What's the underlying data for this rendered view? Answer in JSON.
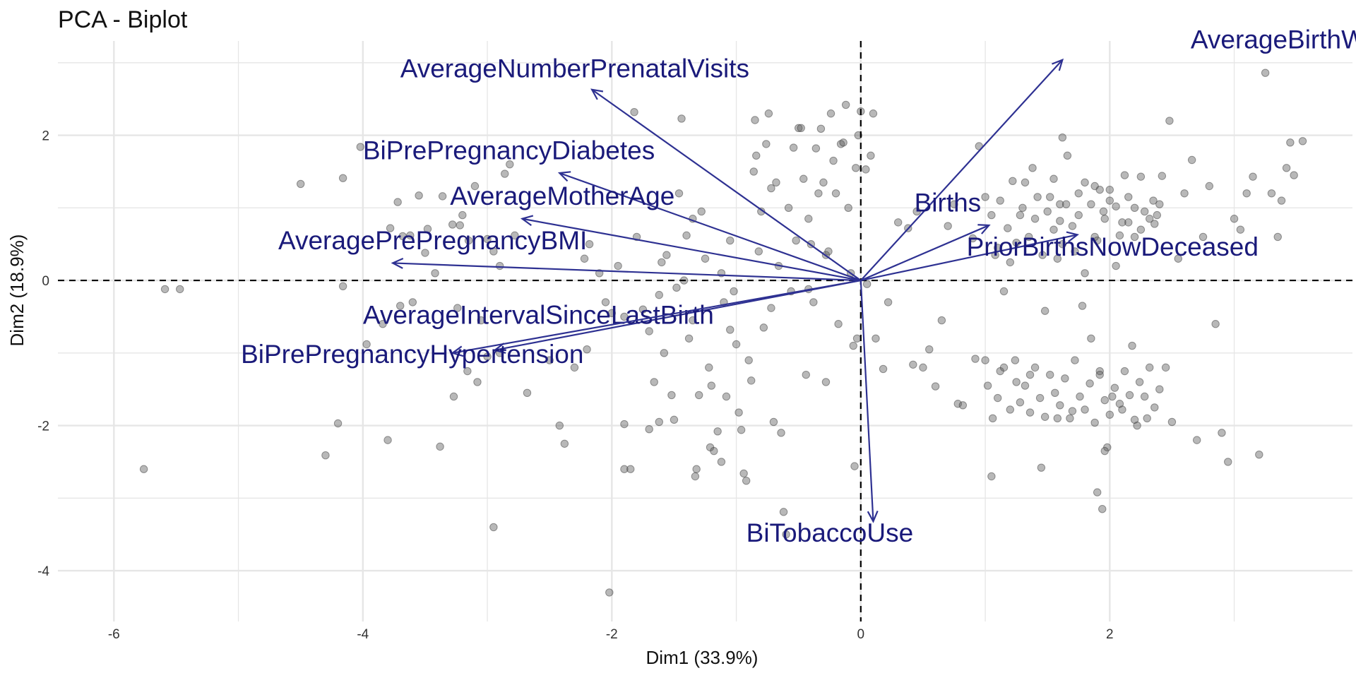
{
  "chart_data": {
    "type": "scatter",
    "title": "PCA - Biplot",
    "xlabel": "Dim1 (33.9%)",
    "ylabel": "Dim2 (18.9%)",
    "xlim": [
      -6.45,
      3.95
    ],
    "ylim": [
      -4.7,
      3.3
    ],
    "x_ticks": [
      -6,
      -4,
      -2,
      0,
      2
    ],
    "y_ticks": [
      -4,
      -2,
      0,
      2
    ],
    "tick_labels_x": [
      "-6",
      "-4",
      "-2",
      "0",
      "2"
    ],
    "tick_labels_y": [
      "-4",
      "-2",
      "0",
      "2"
    ],
    "grid": true,
    "reference_lines": {
      "x": 0,
      "y": 0,
      "style": "dashed"
    },
    "colors": {
      "points": "#555555",
      "arrows": "#2E3192",
      "labels": "#1A1A7A",
      "grid": "#E6E6E6"
    },
    "variables": [
      {
        "label": "AverageBirthWeight",
        "end": [
          1.62,
          3.04
        ],
        "label_pos": [
          2.65,
          3.2
        ]
      },
      {
        "label": "AverageNumberPrenatalVisits",
        "end": [
          -2.16,
          2.63
        ],
        "label_pos": [
          -3.7,
          2.8
        ]
      },
      {
        "label": "BiPrePregnancyDiabetes",
        "end": [
          -2.42,
          1.48
        ],
        "label_pos": [
          -4,
          1.67
        ]
      },
      {
        "label": "AverageMotherAge",
        "end": [
          -2.72,
          0.85
        ],
        "label_pos": [
          -3.3,
          1.04
        ]
      },
      {
        "label": "AveragePrePregnancyBMI",
        "end": [
          -3.76,
          0.24
        ],
        "label_pos": [
          -4.68,
          0.43
        ]
      },
      {
        "label": "Births",
        "end": [
          1.03,
          0.76
        ],
        "label_pos": [
          0.43,
          0.95
        ]
      },
      {
        "label": "PriorBirthsNowDeceased",
        "end": [
          1.74,
          0.63
        ],
        "label_pos": [
          0.85,
          0.34
        ]
      },
      {
        "label": "AverageIntervalSinceLastBirth",
        "end": [
          -2.94,
          -0.96
        ],
        "label_pos": [
          -4.0,
          -0.6
        ]
      },
      {
        "label": "BiPrePregnancyHypertension",
        "end": [
          -3.28,
          -1.0
        ],
        "label_pos": [
          -4.98,
          -1.14
        ]
      },
      {
        "label": "BiTobaccoUse",
        "end": [
          0.1,
          -3.32
        ],
        "label_pos": [
          -0.92,
          -3.6
        ]
      }
    ],
    "points": [
      [
        -5.76,
        -2.6
      ],
      [
        -5.47,
        -0.12
      ],
      [
        -5.59,
        -0.12
      ],
      [
        -4.5,
        1.33
      ],
      [
        -4.16,
        1.41
      ],
      [
        -4.2,
        -1.97
      ],
      [
        -4.3,
        -2.41
      ],
      [
        -4.16,
        -0.08
      ],
      [
        -4.02,
        1.84
      ],
      [
        -3.97,
        -0.88
      ],
      [
        -3.84,
        -0.6
      ],
      [
        -3.8,
        -2.2
      ],
      [
        -3.78,
        0.72
      ],
      [
        -3.72,
        1.08
      ],
      [
        -3.68,
        0.61
      ],
      [
        -3.62,
        0.62
      ],
      [
        -3.6,
        -0.3
      ],
      [
        -3.55,
        1.17
      ],
      [
        -3.5,
        0.38
      ],
      [
        -3.48,
        0.71
      ],
      [
        -3.42,
        0.1
      ],
      [
        -3.36,
        1.16
      ],
      [
        -3.28,
        0.77
      ],
      [
        -3.22,
        0.76
      ],
      [
        -3.2,
        0.9
      ],
      [
        -3.15,
        0.55
      ],
      [
        -3.1,
        1.3
      ],
      [
        -3.05,
        -0.55
      ],
      [
        -3.0,
        0.57
      ],
      [
        -2.95,
        0.4
      ],
      [
        -2.9,
        0.2
      ],
      [
        -2.86,
        1.47
      ],
      [
        -2.82,
        1.6
      ],
      [
        -2.78,
        0.62
      ],
      [
        -3.7,
        -0.35
      ],
      [
        -3.38,
        -2.29
      ],
      [
        -3.27,
        -1.6
      ],
      [
        -3.24,
        -0.38
      ],
      [
        -3.16,
        -1.25
      ],
      [
        -3.08,
        -1.4
      ],
      [
        -3.0,
        -1.05
      ],
      [
        -2.95,
        -3.4
      ],
      [
        -2.9,
        -1.0
      ],
      [
        -2.68,
        -1.55
      ],
      [
        -2.5,
        -1.1
      ],
      [
        -2.42,
        -2.0
      ],
      [
        -2.38,
        -2.25
      ],
      [
        -2.3,
        -1.2
      ],
      [
        -2.22,
        0.3
      ],
      [
        -2.18,
        0.5
      ],
      [
        -2.1,
        0.1
      ],
      [
        -2.05,
        -0.3
      ],
      [
        -2.0,
        -0.45
      ],
      [
        -2.02,
        -4.3
      ],
      [
        -1.95,
        0.2
      ],
      [
        -1.9,
        -2.6
      ],
      [
        -1.9,
        -1.98
      ],
      [
        -1.85,
        -2.6
      ],
      [
        -1.82,
        2.32
      ],
      [
        -1.8,
        0.6
      ],
      [
        -1.75,
        -0.4
      ],
      [
        -1.7,
        -0.7
      ],
      [
        -1.7,
        -2.05
      ],
      [
        -1.66,
        -1.4
      ],
      [
        -1.62,
        -1.95
      ],
      [
        -1.6,
        0.25
      ],
      [
        -1.58,
        -1.0
      ],
      [
        -1.56,
        0.35
      ],
      [
        -1.52,
        -1.58
      ],
      [
        -1.5,
        -1.92
      ],
      [
        -1.48,
        -0.1
      ],
      [
        -1.46,
        1.2
      ],
      [
        -1.44,
        2.23
      ],
      [
        -1.42,
        0.0
      ],
      [
        -1.4,
        0.62
      ],
      [
        -1.38,
        -0.8
      ],
      [
        -1.35,
        -0.55
      ],
      [
        -1.33,
        -2.7
      ],
      [
        -1.32,
        -2.6
      ],
      [
        -1.3,
        -1.58
      ],
      [
        -1.28,
        0.95
      ],
      [
        -1.25,
        0.3
      ],
      [
        -1.22,
        -1.2
      ],
      [
        -1.21,
        -2.3
      ],
      [
        -1.2,
        -1.45
      ],
      [
        -1.18,
        -2.35
      ],
      [
        -1.15,
        -2.08
      ],
      [
        -1.12,
        -2.5
      ],
      [
        -1.12,
        0.1
      ],
      [
        -1.08,
        -1.6
      ],
      [
        -1.05,
        -0.68
      ],
      [
        -1.05,
        0.55
      ],
      [
        -1.02,
        -0.15
      ],
      [
        -1.0,
        -0.88
      ],
      [
        -0.98,
        -1.82
      ],
      [
        -0.96,
        -2.06
      ],
      [
        -0.94,
        -2.66
      ],
      [
        -0.92,
        -2.76
      ],
      [
        -0.9,
        -1.1
      ],
      [
        -0.88,
        -1.38
      ],
      [
        -0.86,
        1.5
      ],
      [
        -0.85,
        2.21
      ],
      [
        -0.84,
        1.72
      ],
      [
        -0.82,
        0.4
      ],
      [
        -0.8,
        0.95
      ],
      [
        -0.78,
        -0.65
      ],
      [
        -0.76,
        1.88
      ],
      [
        -0.74,
        2.3
      ],
      [
        -0.72,
        1.27
      ],
      [
        -0.7,
        -1.95
      ],
      [
        -0.68,
        1.35
      ],
      [
        -0.66,
        0.2
      ],
      [
        -0.64,
        -2.1
      ],
      [
        -0.62,
        -3.19
      ],
      [
        -0.6,
        -3.5
      ],
      [
        -0.58,
        1.0
      ],
      [
        -0.56,
        -0.15
      ],
      [
        -0.54,
        1.83
      ],
      [
        -0.52,
        0.55
      ],
      [
        -0.5,
        2.1
      ],
      [
        -0.48,
        2.1
      ],
      [
        -0.46,
        1.4
      ],
      [
        -0.44,
        -1.3
      ],
      [
        -0.42,
        0.85
      ],
      [
        -0.4,
        0.5
      ],
      [
        -0.38,
        -0.3
      ],
      [
        -0.36,
        1.82
      ],
      [
        -0.34,
        1.2
      ],
      [
        -0.32,
        2.09
      ],
      [
        -0.3,
        1.35
      ],
      [
        -0.28,
        0.35
      ],
      [
        -0.26,
        0.4
      ],
      [
        -0.24,
        2.3
      ],
      [
        -0.22,
        1.65
      ],
      [
        -0.2,
        1.2
      ],
      [
        -0.18,
        -0.6
      ],
      [
        -0.16,
        1.88
      ],
      [
        -0.14,
        1.9
      ],
      [
        -0.12,
        2.42
      ],
      [
        -0.1,
        1.0
      ],
      [
        -0.08,
        0.1
      ],
      [
        -0.06,
        -0.9
      ],
      [
        -0.04,
        1.55
      ],
      [
        -0.02,
        2.0
      ],
      [
        0.0,
        2.33
      ],
      [
        0.04,
        1.53
      ],
      [
        0.05,
        -0.05
      ],
      [
        -0.03,
        -0.8
      ],
      [
        -0.05,
        -2.56
      ],
      [
        0.08,
        1.72
      ],
      [
        0.1,
        2.3
      ],
      [
        0.12,
        -0.8
      ],
      [
        0.18,
        -1.22
      ],
      [
        0.22,
        -0.3
      ],
      [
        0.3,
        0.8
      ],
      [
        0.38,
        0.72
      ],
      [
        0.42,
        -1.16
      ],
      [
        0.45,
        0.95
      ],
      [
        0.5,
        -1.2
      ],
      [
        0.55,
        -0.95
      ],
      [
        0.6,
        -1.46
      ],
      [
        0.65,
        -0.55
      ],
      [
        0.7,
        0.75
      ],
      [
        0.75,
        1.05
      ],
      [
        0.78,
        -1.7
      ],
      [
        0.82,
        -1.72
      ],
      [
        0.9,
        0.58
      ],
      [
        0.95,
        1.85
      ],
      [
        1.0,
        -1.1
      ],
      [
        1.05,
        -2.7
      ],
      [
        1.08,
        0.35
      ],
      [
        1.12,
        -1.25
      ],
      [
        1.15,
        -0.15
      ],
      [
        1.2,
        0.25
      ],
      [
        1.25,
        -1.4
      ],
      [
        1.28,
        0.9
      ],
      [
        1.32,
        1.35
      ],
      [
        1.36,
        -1.3
      ],
      [
        1.4,
        0.85
      ],
      [
        1.45,
        -2.58
      ],
      [
        1.48,
        -0.42
      ],
      [
        1.52,
        1.15
      ],
      [
        1.55,
        0.7
      ],
      [
        1.58,
        -1.9
      ],
      [
        1.6,
        1.05
      ],
      [
        1.62,
        0.5
      ],
      [
        1.66,
        1.72
      ],
      [
        1.7,
        -1.8
      ],
      [
        1.72,
        0.4
      ],
      [
        1.75,
        1.2
      ],
      [
        1.78,
        -0.35
      ],
      [
        1.8,
        0.1
      ],
      [
        1.85,
        -0.8
      ],
      [
        1.88,
        1.3
      ],
      [
        1.9,
        0.55
      ],
      [
        1.92,
        -1.25
      ],
      [
        1.95,
        0.95
      ],
      [
        1.98,
        -2.3
      ],
      [
        2.0,
        1.1
      ],
      [
        2.02,
        -1.6
      ],
      [
        2.05,
        0.2
      ],
      [
        2.08,
        0.62
      ],
      [
        2.1,
        -1.78
      ],
      [
        2.12,
        1.45
      ],
      [
        2.15,
        0.8
      ],
      [
        2.18,
        -0.9
      ],
      [
        2.2,
        1.0
      ],
      [
        2.22,
        -2.0
      ],
      [
        2.25,
        0.7
      ],
      [
        2.28,
        0.95
      ],
      [
        2.3,
        -1.9
      ],
      [
        2.35,
        1.1
      ],
      [
        2.38,
        0.9
      ],
      [
        2.42,
        1.44
      ],
      [
        2.45,
        -1.2
      ],
      [
        2.5,
        -1.95
      ],
      [
        2.55,
        0.3
      ],
      [
        2.6,
        1.2
      ],
      [
        2.66,
        1.66
      ],
      [
        2.7,
        -2.2
      ],
      [
        2.75,
        0.6
      ],
      [
        2.8,
        1.3
      ],
      [
        2.85,
        -0.6
      ],
      [
        2.9,
        -2.1
      ],
      [
        2.95,
        -2.5
      ],
      [
        3.0,
        0.85
      ],
      [
        3.05,
        0.7
      ],
      [
        3.1,
        1.2
      ],
      [
        3.15,
        1.43
      ],
      [
        3.2,
        -2.4
      ],
      [
        3.25,
        2.86
      ],
      [
        3.3,
        1.2
      ],
      [
        3.35,
        0.6
      ],
      [
        3.38,
        1.1
      ],
      [
        3.42,
        1.55
      ],
      [
        3.45,
        1.9
      ],
      [
        3.48,
        1.45
      ],
      [
        3.55,
        1.92
      ],
      [
        2.48,
        2.2
      ],
      [
        1.62,
        1.97
      ],
      [
        1.0,
        1.15
      ],
      [
        1.05,
        0.9
      ],
      [
        1.1,
        0.45
      ],
      [
        1.12,
        1.1
      ],
      [
        1.18,
        0.72
      ],
      [
        1.22,
        1.37
      ],
      [
        1.25,
        0.52
      ],
      [
        1.3,
        1.0
      ],
      [
        1.35,
        0.6
      ],
      [
        1.38,
        1.55
      ],
      [
        1.42,
        1.15
      ],
      [
        1.46,
        0.35
      ],
      [
        1.5,
        0.95
      ],
      [
        1.55,
        1.4
      ],
      [
        1.58,
        0.3
      ],
      [
        1.6,
        0.82
      ],
      [
        1.65,
        1.05
      ],
      [
        1.7,
        0.75
      ],
      [
        1.75,
        0.9
      ],
      [
        1.8,
        1.35
      ],
      [
        1.85,
        1.05
      ],
      [
        1.88,
        0.6
      ],
      [
        1.92,
        1.25
      ],
      [
        1.96,
        0.85
      ],
      [
        2.0,
        1.25
      ],
      [
        2.05,
        1.02
      ],
      [
        2.1,
        0.8
      ],
      [
        2.15,
        1.15
      ],
      [
        2.2,
        0.6
      ],
      [
        2.25,
        1.43
      ],
      [
        2.32,
        0.85
      ],
      [
        2.36,
        0.78
      ],
      [
        2.4,
        1.05
      ],
      [
        1.02,
        -1.45
      ],
      [
        1.06,
        -1.9
      ],
      [
        1.1,
        -1.62
      ],
      [
        1.15,
        -1.2
      ],
      [
        1.2,
        -1.78
      ],
      [
        1.24,
        -1.1
      ],
      [
        1.28,
        -1.68
      ],
      [
        1.32,
        -1.45
      ],
      [
        1.36,
        -1.82
      ],
      [
        1.4,
        -1.2
      ],
      [
        1.44,
        -1.62
      ],
      [
        1.48,
        -1.88
      ],
      [
        1.52,
        -1.3
      ],
      [
        1.56,
        -1.55
      ],
      [
        1.6,
        -1.72
      ],
      [
        1.64,
        -1.35
      ],
      [
        1.68,
        -1.9
      ],
      [
        1.72,
        -1.1
      ],
      [
        1.76,
        -1.6
      ],
      [
        1.8,
        -1.78
      ],
      [
        1.84,
        -1.42
      ],
      [
        1.88,
        -1.96
      ],
      [
        1.92,
        -1.3
      ],
      [
        1.96,
        -1.65
      ],
      [
        2.0,
        -1.85
      ],
      [
        2.04,
        -1.48
      ],
      [
        2.08,
        -1.7
      ],
      [
        2.12,
        -1.25
      ],
      [
        2.16,
        -1.58
      ],
      [
        2.2,
        -1.92
      ],
      [
        2.24,
        -1.4
      ],
      [
        2.28,
        -1.6
      ],
      [
        2.32,
        -1.2
      ],
      [
        2.36,
        -1.75
      ],
      [
        2.4,
        -1.5
      ],
      [
        1.9,
        -2.92
      ],
      [
        1.94,
        -3.15
      ],
      [
        1.96,
        -2.35
      ],
      [
        0.92,
        -1.08
      ],
      [
        -1.9,
        -0.5
      ],
      [
        -2.2,
        -0.95
      ],
      [
        -1.62,
        -0.2
      ],
      [
        -1.35,
        0.85
      ],
      [
        -1.1,
        -0.3
      ],
      [
        -0.72,
        -0.38
      ],
      [
        -0.42,
        -0.12
      ],
      [
        -0.28,
        -1.4
      ]
    ]
  }
}
